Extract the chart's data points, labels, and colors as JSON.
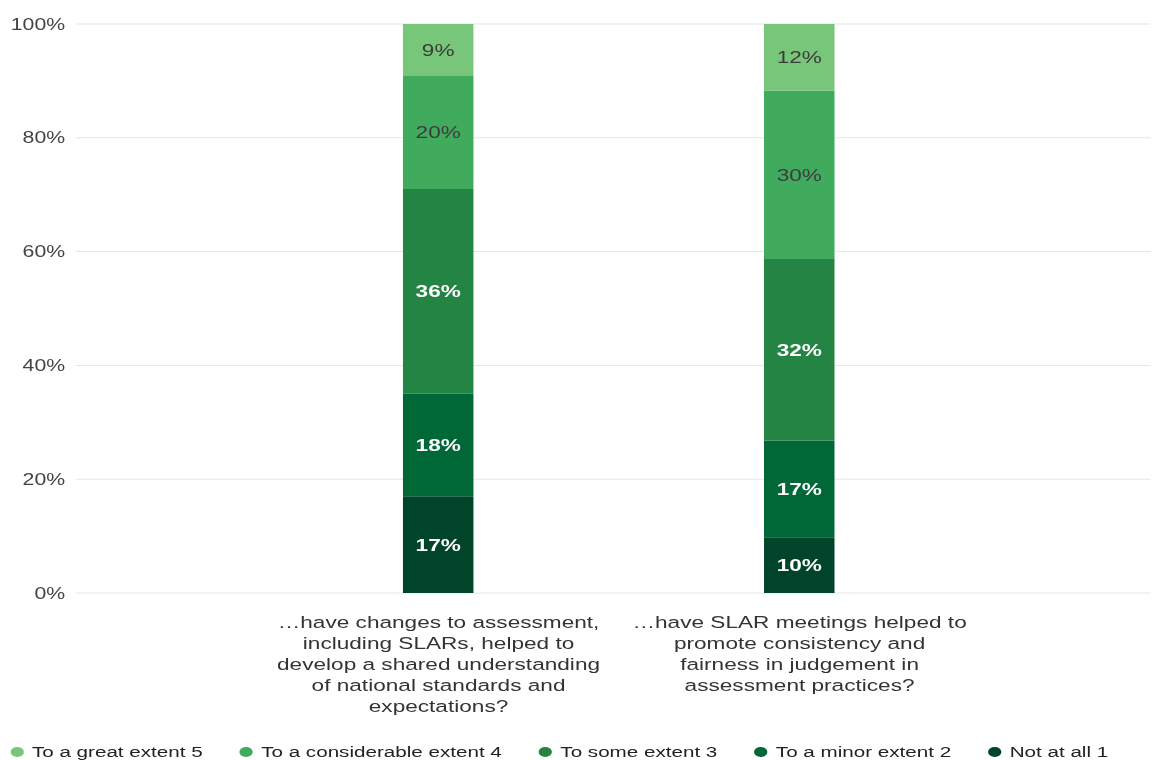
{
  "chart_data": {
    "type": "bar",
    "stacked": true,
    "categories": [
      "…have changes to assessment,\nincluding SLARs, helped to\ndevelop a shared understanding\nof national standards and\nexpectations?",
      "…have SLAR meetings helped to\npromote consistency and\nfairness in judgement in\nassessment practices?"
    ],
    "series": [
      {
        "name": "Not at all 1",
        "color": "#00452a",
        "values": [
          17,
          9.8
        ],
        "value_labels": [
          "17%",
          "10%"
        ]
      },
      {
        "name": "To a minor extent 2",
        "color": "#006837",
        "values": [
          18,
          17
        ],
        "value_labels": [
          "18%",
          "17%"
        ]
      },
      {
        "name": "To some extent 3",
        "color": "#238443",
        "values": [
          36,
          31.9
        ],
        "value_labels": [
          "36%",
          "32%"
        ]
      },
      {
        "name": "To a considerable extent 4",
        "color": "#41ab5d",
        "values": [
          20,
          29.6
        ],
        "value_labels": [
          "20%",
          "30%"
        ]
      },
      {
        "name": "To a great extent 5",
        "color": "#78c679",
        "values": [
          9,
          11.7
        ],
        "value_labels": [
          "9%",
          "12%"
        ]
      }
    ],
    "ylim": [
      0,
      100
    ],
    "yticks": [
      {
        "value": 0,
        "label": "0%"
      },
      {
        "value": 20,
        "label": "20%"
      },
      {
        "value": 40,
        "label": "40%"
      },
      {
        "value": 60,
        "label": "60%"
      },
      {
        "value": 80,
        "label": "80%"
      },
      {
        "value": 100,
        "label": "100%"
      }
    ],
    "grid": "y",
    "legend": "bottom"
  }
}
